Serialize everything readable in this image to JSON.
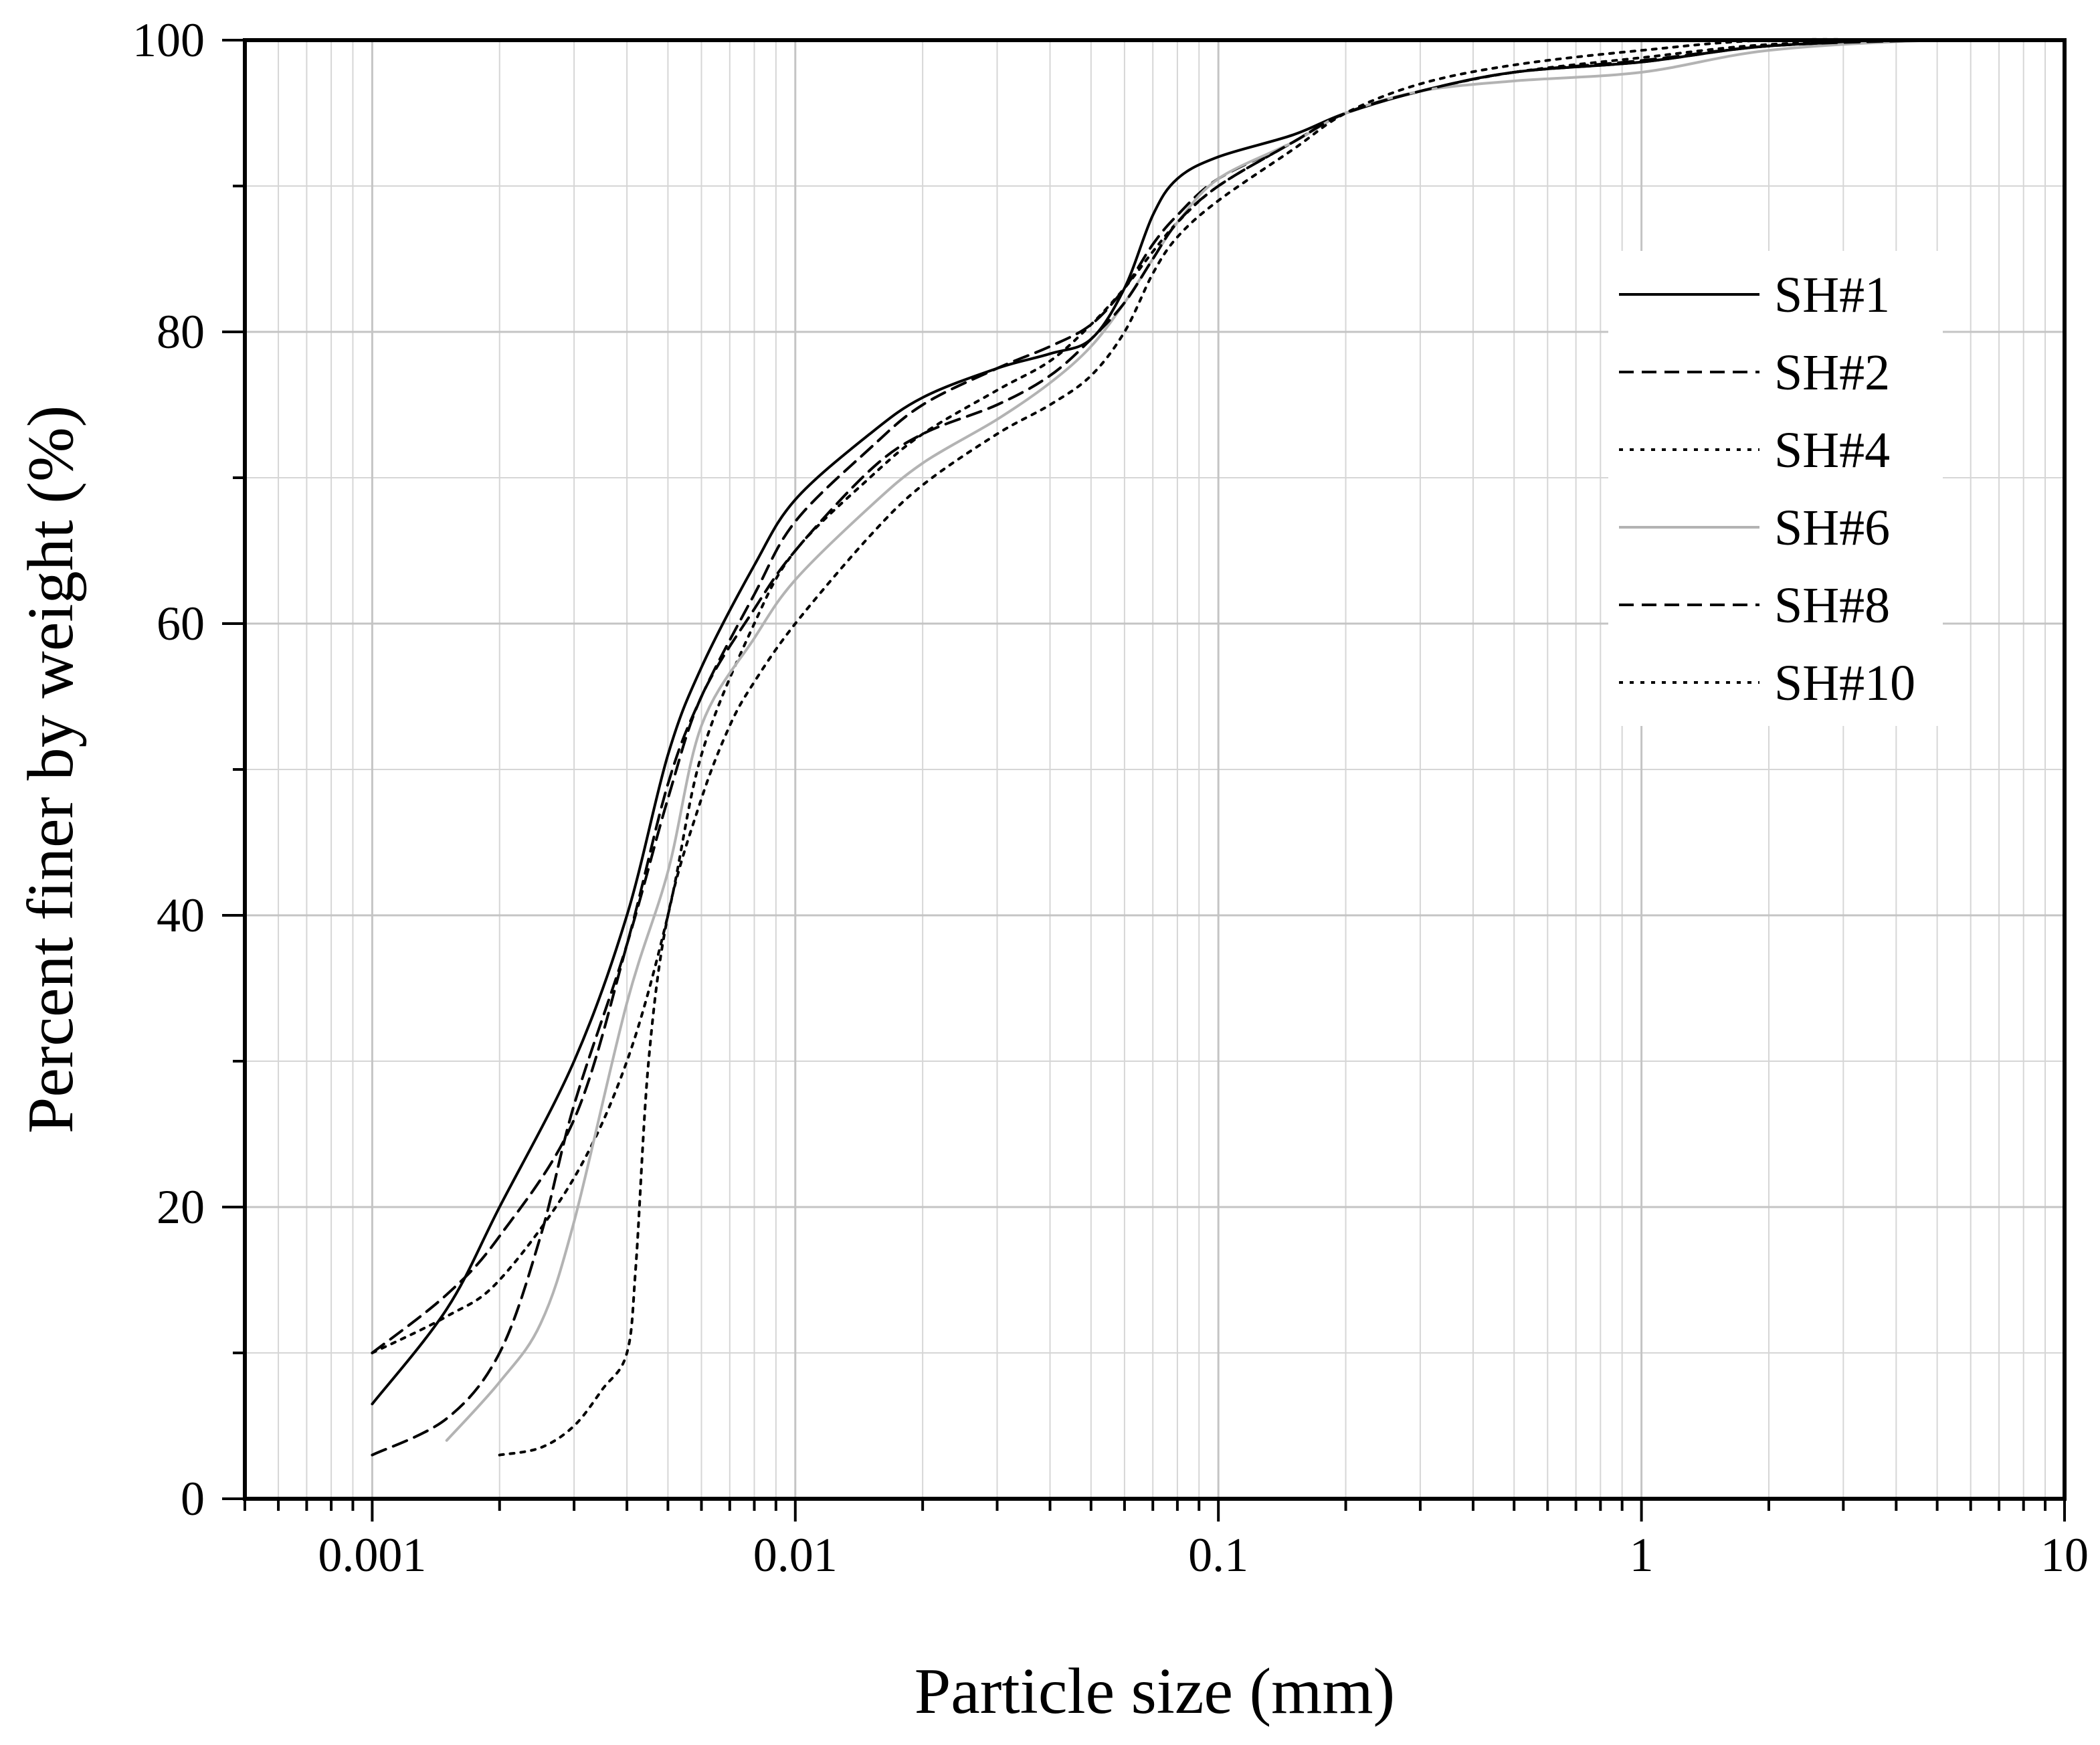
{
  "chart_data": {
    "type": "line",
    "xlabel": "Particle size (mm)",
    "ylabel": "Percent finer by weight (%)",
    "xscale": "log",
    "xlim": [
      0.0005,
      10
    ],
    "ylim": [
      0,
      100
    ],
    "grid": true,
    "legend_position": "top-right",
    "x_ticks": [
      {
        "value": 0.001,
        "label": "0.001"
      },
      {
        "value": 0.01,
        "label": "0.01"
      },
      {
        "value": 0.1,
        "label": "0.1"
      },
      {
        "value": 1,
        "label": "1"
      },
      {
        "value": 10,
        "label": "10"
      }
    ],
    "y_ticks": [
      {
        "value": 0,
        "label": "0"
      },
      {
        "value": 20,
        "label": "20"
      },
      {
        "value": 40,
        "label": "40"
      },
      {
        "value": 60,
        "label": "60"
      },
      {
        "value": 80,
        "label": "80"
      },
      {
        "value": 100,
        "label": "100"
      }
    ],
    "series": [
      {
        "name": "SH#1",
        "style": "solid",
        "color": "#000000",
        "x": [
          0.001,
          0.0015,
          0.002,
          0.003,
          0.004,
          0.005,
          0.006,
          0.008,
          0.01,
          0.015,
          0.02,
          0.03,
          0.04,
          0.05,
          0.06,
          0.07,
          0.08,
          0.1,
          0.15,
          0.2,
          0.3,
          0.5,
          1,
          2,
          5,
          10
        ],
        "y": [
          6.5,
          13,
          20,
          30,
          40,
          51,
          57,
          64,
          68.5,
          73,
          75.5,
          77.5,
          78.5,
          79.5,
          83,
          88,
          90.5,
          92,
          93.5,
          95,
          96.5,
          97.8,
          98.5,
          99.6,
          100,
          100
        ]
      },
      {
        "name": "SH#2",
        "style": "dashed",
        "color": "#000000",
        "x": [
          0.001,
          0.0015,
          0.002,
          0.003,
          0.004,
          0.005,
          0.006,
          0.008,
          0.01,
          0.015,
          0.02,
          0.03,
          0.04,
          0.05,
          0.06,
          0.07,
          0.08,
          0.1,
          0.15,
          0.2,
          0.3,
          0.5,
          1,
          2,
          5,
          10
        ],
        "y": [
          10,
          14,
          18,
          26,
          38,
          49,
          55,
          62,
          67,
          72,
          75,
          77.5,
          79,
          80.5,
          83,
          86,
          88,
          90.5,
          93,
          95,
          96.5,
          97.8,
          98.5,
          99.6,
          100,
          100
        ]
      },
      {
        "name": "SH#4",
        "style": "dotted",
        "color": "#000000",
        "x": [
          0.001,
          0.0015,
          0.002,
          0.003,
          0.004,
          0.005,
          0.006,
          0.008,
          0.01,
          0.015,
          0.02,
          0.03,
          0.04,
          0.05,
          0.06,
          0.07,
          0.08,
          0.1,
          0.15,
          0.2,
          0.3,
          0.5,
          1,
          2,
          5,
          10
        ],
        "y": [
          10,
          12.5,
          15,
          22,
          30,
          40,
          51,
          60,
          65,
          70,
          73,
          76,
          78,
          80.5,
          83,
          85.5,
          87.5,
          90,
          93,
          95,
          96.5,
          97.8,
          98.8,
          99.7,
          100,
          100
        ]
      },
      {
        "name": "SH#6",
        "style": "solid",
        "color": "#b3b3b3",
        "x": [
          0.0015,
          0.002,
          0.0025,
          0.003,
          0.004,
          0.005,
          0.006,
          0.008,
          0.01,
          0.015,
          0.02,
          0.03,
          0.04,
          0.05,
          0.06,
          0.07,
          0.08,
          0.1,
          0.15,
          0.2,
          0.3,
          0.5,
          1,
          2,
          5,
          10
        ],
        "y": [
          4,
          8,
          12,
          19,
          34,
          43,
          53,
          59,
          63,
          68,
          71,
          74,
          76.5,
          79,
          82,
          85,
          87.5,
          90.5,
          93,
          95,
          96.5,
          97.2,
          97.8,
          99.3,
          100,
          100
        ]
      },
      {
        "name": "SH#8",
        "style": "dashed",
        "color": "#000000",
        "x": [
          0.001,
          0.0015,
          0.002,
          0.0025,
          0.003,
          0.004,
          0.005,
          0.006,
          0.008,
          0.01,
          0.015,
          0.02,
          0.03,
          0.04,
          0.05,
          0.06,
          0.07,
          0.08,
          0.1,
          0.15,
          0.2,
          0.3,
          0.5,
          1,
          2,
          5,
          10
        ],
        "y": [
          3,
          5.5,
          10,
          18,
          27,
          38,
          48,
          55,
          61,
          65,
          70.5,
          73,
          75,
          77,
          79.5,
          82,
          85,
          87.5,
          90,
          93,
          95,
          96.5,
          97.8,
          98.6,
          99.6,
          100,
          100
        ]
      },
      {
        "name": "SH#10",
        "style": "dotted",
        "color": "#000000",
        "x": [
          0.002,
          0.0025,
          0.003,
          0.0035,
          0.004,
          0.0042,
          0.0045,
          0.005,
          0.006,
          0.007,
          0.008,
          0.01,
          0.015,
          0.02,
          0.03,
          0.04,
          0.05,
          0.06,
          0.07,
          0.08,
          0.1,
          0.15,
          0.2,
          0.3,
          0.5,
          1,
          2,
          5,
          10
        ],
        "y": [
          3,
          3.5,
          5,
          7.5,
          10,
          16,
          30,
          40,
          48,
          53,
          56,
          60,
          66,
          69.5,
          73,
          75,
          77,
          80,
          84,
          86.5,
          89,
          92.5,
          95,
          97,
          98.3,
          99.3,
          100,
          100,
          100
        ]
      }
    ]
  }
}
